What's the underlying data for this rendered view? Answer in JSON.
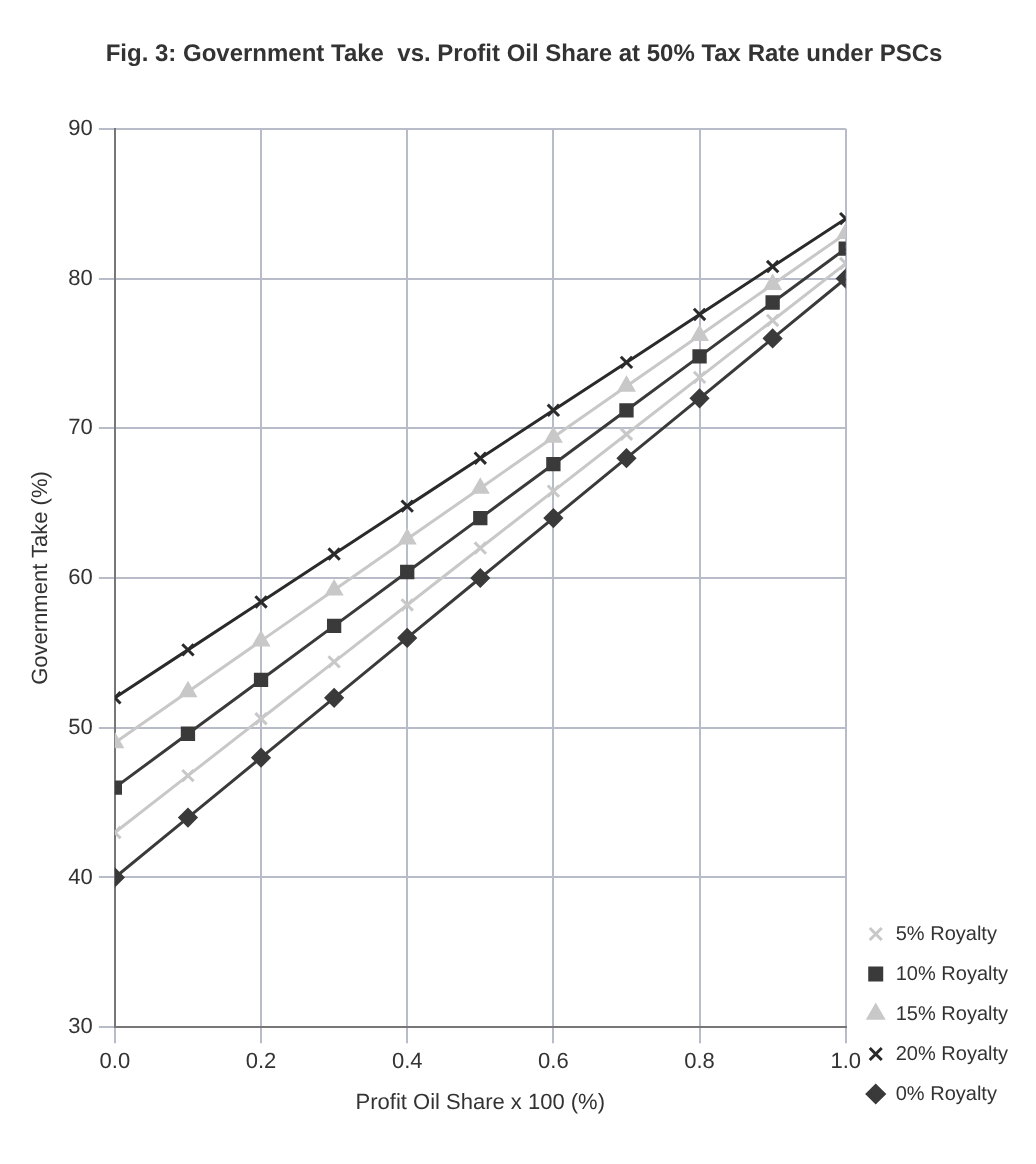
{
  "chart_data": {
    "type": "line",
    "title": "Fig. 3: Government Take  vs. Profit Oil Share at 50% Tax Rate under PSCs",
    "xlabel": "Profit Oil Share x 100 (%)",
    "ylabel": "Government Take (%)",
    "x": [
      0,
      0.1,
      0.2,
      0.3,
      0.4,
      0.5,
      0.6,
      0.7,
      0.8,
      0.9,
      1.0
    ],
    "xlim": [
      0,
      1
    ],
    "xticks": [
      {
        "value": 0,
        "label": "0.0"
      },
      0.2,
      0.4,
      0.6,
      0.8,
      {
        "value": 1,
        "label": "1.0"
      }
    ],
    "ylim": [
      30,
      90
    ],
    "yticks": [
      30,
      40,
      50,
      60,
      70,
      80,
      90
    ],
    "grid": true,
    "legend": "bottom right",
    "line_style": "solid",
    "series": [
      {
        "name": "5% Royalty",
        "color": "#c8c8c8",
        "marker": "cross",
        "values": [
          43,
          46.8,
          50.6,
          54.4,
          58.2,
          62,
          65.8,
          69.6,
          73.4,
          77.2,
          81
        ]
      },
      {
        "name": "10% Royalty",
        "color": "#3a3a3a",
        "marker": "square",
        "values": [
          46,
          49.6,
          53.2,
          56.8,
          60.4,
          64,
          67.6,
          71.2,
          74.8,
          78.4,
          82
        ]
      },
      {
        "name": "15% Royalty",
        "color": "#c8c8c8",
        "marker": "triangle",
        "values": [
          49,
          52.4,
          55.8,
          59.2,
          62.6,
          66,
          69.4,
          72.8,
          76.2,
          79.6,
          83
        ]
      },
      {
        "name": "20% Royalty",
        "color": "#2a2a2a",
        "marker": "cross",
        "values": [
          52,
          55.2,
          58.4,
          61.6,
          64.8,
          68,
          71.2,
          74.4,
          77.6,
          80.8,
          84
        ]
      },
      {
        "name": "0% Royalty",
        "color": "#3a3a3a",
        "marker": "diamond",
        "values": [
          40,
          44,
          48,
          52,
          56,
          60,
          64,
          68,
          72,
          76,
          80
        ]
      }
    ]
  }
}
